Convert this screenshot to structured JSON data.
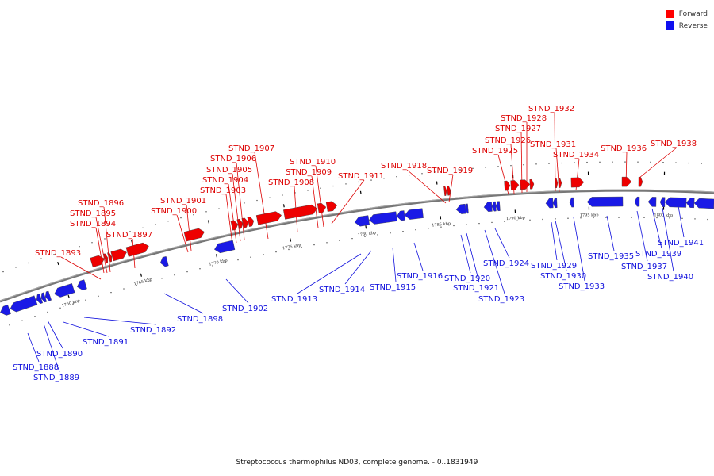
{
  "legend": [
    {
      "label": "Forward",
      "color": "#ff0000"
    },
    {
      "label": "Reverse",
      "color": "#1010f0"
    }
  ],
  "caption": "Streptococcus thermophilus ND03, complete genome. - 0..1831949",
  "colors": {
    "forward": "#ee0000",
    "reverse": "#1a1ae6",
    "backbone": "#777777"
  },
  "tick_labels": [
    "1760 kbp",
    "1765 kbp",
    "1770 kbp",
    "1775 kbp",
    "1780 kbp",
    "1785 kbp",
    "1790 kbp",
    "1795 kbp",
    "1800 kbp"
  ],
  "forward_genes": [
    "STND_1893",
    "STND_1894",
    "STND_1895",
    "STND_1896",
    "STND_1897",
    "STND_1900",
    "STND_1901",
    "STND_1903",
    "STND_1904",
    "STND_1905",
    "STND_1906",
    "STND_1907",
    "STND_1908",
    "STND_1909",
    "STND_1910",
    "STND_1911",
    "STND_1918",
    "STND_1919",
    "STND_1925",
    "STND_1926",
    "STND_1927",
    "STND_1928",
    "STND_1931",
    "STND_1932",
    "STND_1934",
    "STND_1936",
    "STND_1938"
  ],
  "reverse_genes": [
    "STND_1888",
    "STND_1889",
    "STND_1890",
    "STND_1891",
    "STND_1892",
    "STND_1898",
    "STND_1902",
    "STND_1913",
    "STND_1914",
    "STND_1915",
    "STND_1916",
    "STND_1920",
    "STND_1921",
    "STND_1923",
    "STND_1924",
    "STND_1929",
    "STND_1930",
    "STND_1933",
    "STND_1935",
    "STND_1937",
    "STND_1939",
    "STND_1940",
    "STND_1941"
  ]
}
